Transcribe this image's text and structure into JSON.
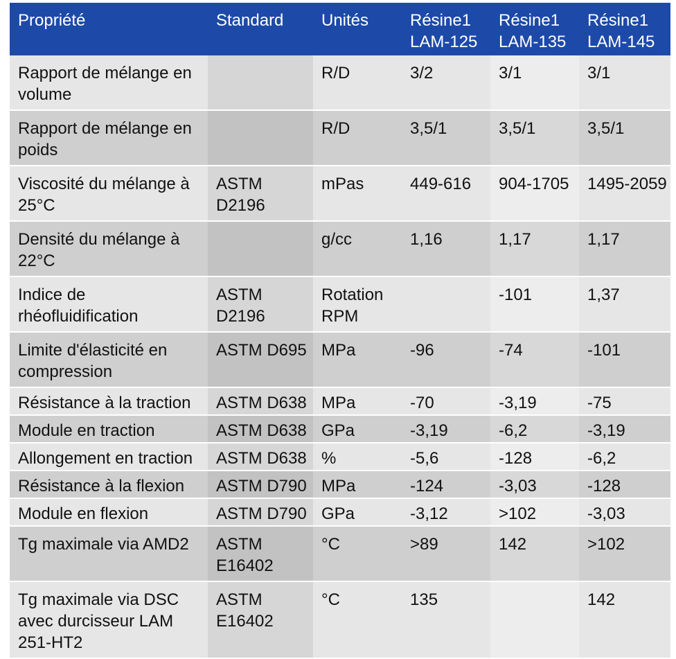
{
  "headers": {
    "property": "Propriété",
    "standard": "Standard",
    "units": "Unités",
    "lam125_line1": "Résine1",
    "lam125_line2": "LAM-125",
    "lam135_line1": "Résine1",
    "lam135_line2": "LAM-135",
    "lam145_line1": "Résine1",
    "lam145_line2": "LAM-145"
  },
  "rows": [
    {
      "property": "Rapport de mélange en volume",
      "standard": "",
      "units": "R/D",
      "lam125": "3/2",
      "lam135": "3/1",
      "lam145": "3/1"
    },
    {
      "property": "Rapport de mélange en poids",
      "standard": "",
      "units": "R/D",
      "lam125": "3,5/1",
      "lam135": "3,5/1",
      "lam145": "3,5/1"
    },
    {
      "property": "Viscosité du mélange à 25°C",
      "standard": "ASTM D2196",
      "units": "mPas",
      "lam125": "449-616",
      "lam135": "904-1705",
      "lam145": "1495-2059"
    },
    {
      "property": "Densité du mélange à 22°C",
      "standard": "",
      "units": "g/cc",
      "lam125": "1,16",
      "lam135": "1,17",
      "lam145": "1,17"
    },
    {
      "property": "Indice de rhéofluidification",
      "standard": "ASTM D2196",
      "units": "Rotation RPM",
      "lam125": "",
      "lam135": "-101",
      "lam145": "1,37"
    },
    {
      "property": "Limite d'élasticité en compression",
      "standard": "ASTM D695",
      "units": "MPa",
      "lam125": "-96",
      "lam135": "-74",
      "lam145": "-101"
    },
    {
      "property": "Résistance à la traction",
      "standard": "ASTM D638",
      "units": "MPa",
      "lam125": "-70",
      "lam135": "-3,19",
      "lam145": "-75"
    },
    {
      "property": "Module en traction",
      "standard": "ASTM D638",
      "units": "GPa",
      "lam125": "-3,19",
      "lam135": "-6,2",
      "lam145": "-3,19"
    },
    {
      "property": "Allongement en traction",
      "standard": "ASTM D638",
      "units": "%",
      "lam125": "-5,6",
      "lam135": "-128",
      "lam145": "-6,2"
    },
    {
      "property": "Résistance à la flexion",
      "standard": "ASTM D790",
      "units": "MPa",
      "lam125": "-124",
      "lam135": "-3,03",
      "lam145": "-128"
    },
    {
      "property": "Module en flexion",
      "standard": "ASTM D790",
      "units": "GPa",
      "lam125": "-3,12",
      "lam135": ">102",
      "lam145": "-3,03"
    },
    {
      "property": "Tg maximale via AMD2",
      "standard": "ASTM E16402",
      "units": "°C",
      "lam125": ">89",
      "lam135": "142",
      "lam145": ">102"
    },
    {
      "property": "Tg maximale via DSC avec durcisseur LAM 251-HT2",
      "standard": "ASTM E16402",
      "units": "°C",
      "lam125": "135",
      "lam135": "",
      "lam145": "142"
    }
  ],
  "colors": {
    "header_background": "#1d4aa8",
    "header_text": "#ffffff",
    "row_light": "#e6e6e6",
    "row_dark": "#cfcfcf"
  }
}
